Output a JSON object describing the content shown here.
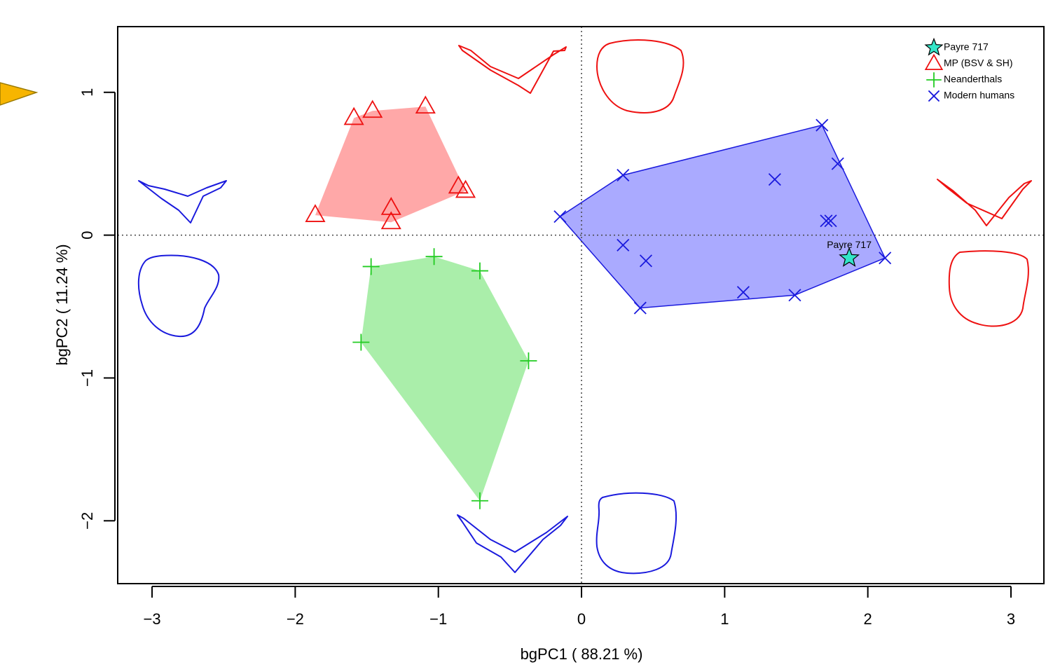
{
  "chart_data": {
    "type": "scatter",
    "x_label": "bgPC1 ( 88.21 %)",
    "y_label": "bgPC2 ( 11.24 %)",
    "xlim": [
      -3.24,
      3.23
    ],
    "ylim": [
      -2.44,
      1.46
    ],
    "xticks": [
      {
        "value": -3,
        "label": "−3"
      },
      {
        "value": -2,
        "label": "−2"
      },
      {
        "value": -1,
        "label": "−1"
      },
      0,
      1,
      2,
      3
    ],
    "yticks": [
      {
        "value": -2,
        "label": "−2"
      },
      {
        "value": -1,
        "label": "−1"
      },
      0,
      1
    ],
    "hlines": [
      0
    ],
    "vlines": [
      0
    ],
    "legend": "top-right",
    "series": [
      {
        "name": "Payre 717",
        "color": "#000000",
        "fill": "#33e6c8",
        "marker": "star",
        "x": [
          1.87
        ],
        "y": [
          -0.16
        ],
        "point_labels": [
          "Payre 717"
        ]
      },
      {
        "name": "MP (BSV & SH)",
        "color": "#ee1111",
        "marker": "triangle",
        "hull_color": "#ffa8a8",
        "x": [
          -1.86,
          -1.59,
          -1.46,
          -1.09,
          -1.33,
          -1.33,
          -0.86,
          -0.81
        ],
        "y": [
          0.14,
          0.82,
          0.87,
          0.9,
          0.19,
          0.09,
          0.34,
          0.31
        ]
      },
      {
        "name": "Neanderthals",
        "color": "#22cc22",
        "marker": "plus",
        "hull_color": "#aaeeaa",
        "x": [
          -1.47,
          -1.03,
          -0.71,
          -1.54,
          -0.37,
          -0.71
        ],
        "y": [
          -0.22,
          -0.15,
          -0.25,
          -0.75,
          -0.88,
          -1.86
        ]
      },
      {
        "name": "Modern humans",
        "color": "#1a1add",
        "marker": "cross",
        "hull_color": "#aaaaff",
        "hull_stroke": "#1a1add",
        "x": [
          -0.15,
          0.29,
          1.68,
          1.79,
          1.35,
          1.71,
          1.74,
          2.12,
          0.29,
          0.45,
          1.13,
          1.49,
          0.41
        ],
        "y": [
          0.13,
          0.42,
          0.77,
          0.5,
          0.39,
          0.1,
          0.1,
          -0.16,
          -0.07,
          -0.18,
          -0.4,
          -0.42,
          -0.51
        ]
      }
    ]
  }
}
